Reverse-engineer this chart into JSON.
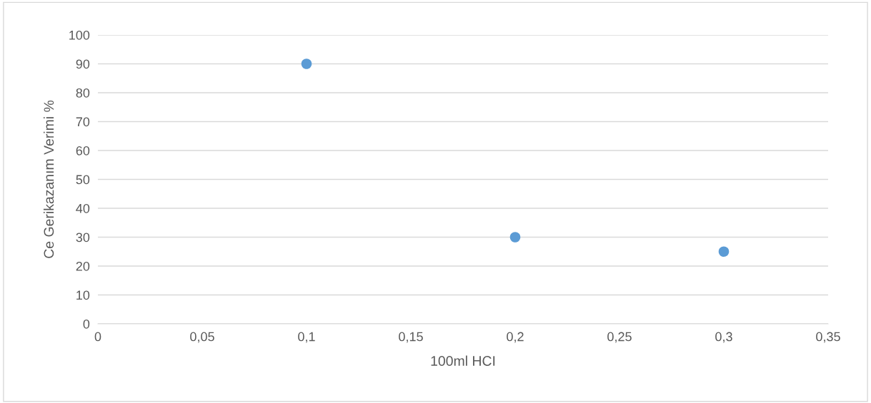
{
  "chart_data": {
    "type": "scatter",
    "xlabel": "100ml HCI",
    "ylabel": "Ce Gerikazanım Verimi %",
    "x": [
      0.1,
      0.2,
      0.3
    ],
    "series": [
      {
        "color": "#5b9bd5",
        "values": [
          90,
          30,
          25
        ]
      }
    ],
    "xlim": [
      0,
      0.35
    ],
    "xticks": [
      0,
      {
        "value": 0.05,
        "label": "0,05"
      },
      {
        "value": 0.1,
        "label": "0,1"
      },
      {
        "value": 0.15,
        "label": "0,15"
      },
      {
        "value": 0.2,
        "label": "0,2"
      },
      {
        "value": 0.25,
        "label": "0,25"
      },
      {
        "value": 0.3,
        "label": "0,3"
      },
      {
        "value": 0.35,
        "label": "0,35"
      }
    ],
    "ylim": [
      0,
      100
    ],
    "yticks": [
      0,
      10,
      20,
      30,
      40,
      50,
      60,
      70,
      80,
      90,
      100
    ],
    "grid": "y",
    "marker": "circle"
  }
}
